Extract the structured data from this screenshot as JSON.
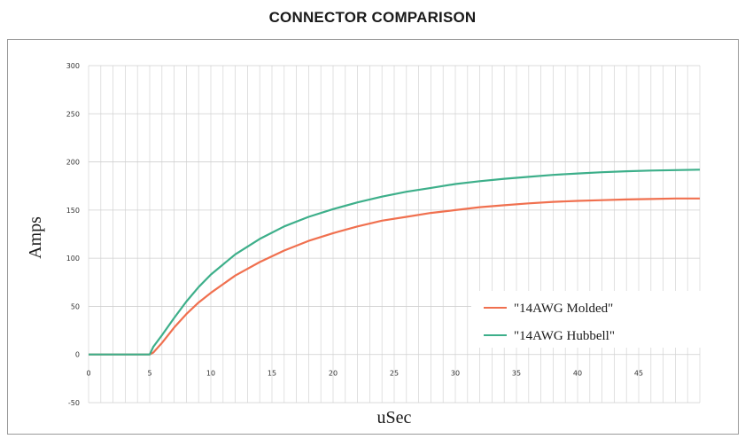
{
  "chart_data": {
    "type": "line",
    "title": "CONNECTOR COMPARISON",
    "xlabel": "uSec",
    "ylabel": "Amps",
    "xlim": [
      0,
      50
    ],
    "ylim": [
      -50,
      300
    ],
    "xticks": [
      0,
      5,
      10,
      15,
      20,
      25,
      30,
      35,
      40,
      45
    ],
    "yticks": [
      -50,
      0,
      50,
      100,
      150,
      200,
      250,
      300
    ],
    "grid": true,
    "legend_position": "bottom-right",
    "series": [
      {
        "name": "\"14AWG Molded\"",
        "color": "#f0704f",
        "x": [
          0,
          5,
          5.3,
          6,
          7,
          8,
          9,
          10,
          12,
          14,
          16,
          18,
          20,
          22,
          24,
          26,
          28,
          30,
          32,
          34,
          36,
          38,
          40,
          42,
          44,
          46,
          48,
          50
        ],
        "y": [
          0,
          0,
          2,
          12,
          28,
          42,
          54,
          64,
          82,
          96,
          108,
          118,
          126,
          133,
          139,
          143,
          147,
          150,
          153,
          155,
          157,
          158.5,
          159.5,
          160.3,
          161,
          161.5,
          162,
          162
        ]
      },
      {
        "name": "\"14AWG Hubbell\"",
        "color": "#3daf8a",
        "x": [
          0,
          5,
          5.3,
          6,
          7,
          8,
          9,
          10,
          12,
          14,
          16,
          18,
          20,
          22,
          24,
          26,
          28,
          30,
          32,
          34,
          36,
          38,
          40,
          42,
          44,
          46,
          48,
          50
        ],
        "y": [
          0,
          0,
          8,
          20,
          38,
          55,
          70,
          83,
          104,
          120,
          133,
          143,
          151,
          158,
          164,
          169,
          173,
          177,
          180,
          182.5,
          184.5,
          186.5,
          188,
          189.3,
          190.3,
          191,
          191.5,
          192
        ]
      }
    ]
  }
}
